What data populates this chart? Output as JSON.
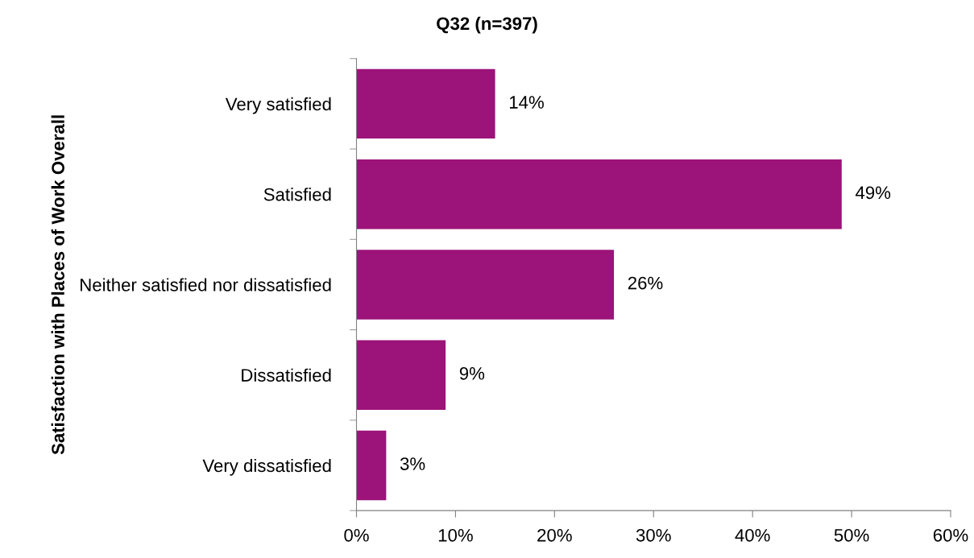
{
  "chart_data": {
    "type": "bar",
    "orientation": "horizontal",
    "title": "Q32 (n=397)",
    "ylabel": "Satisfaction with Places of Work Overall",
    "categories": [
      "Very satisfied",
      "Satisfied",
      "Neither satisfied nor dissatisfied",
      "Dissatisfied",
      "Very dissatisfied"
    ],
    "values": [
      14,
      49,
      26,
      9,
      3
    ],
    "color": "#9c1379",
    "data_labels": true,
    "value_labels": [
      "14%",
      "49%",
      "26%",
      "9%",
      "3%"
    ],
    "xlim": [
      0,
      60
    ],
    "xticks": [
      {
        "value": 0,
        "label": "0%"
      },
      {
        "value": 10,
        "label": "10%"
      },
      {
        "value": 20,
        "label": "20%"
      },
      {
        "value": 30,
        "label": "30%"
      },
      {
        "value": 40,
        "label": "40%"
      },
      {
        "value": 50,
        "label": "50%"
      },
      {
        "value": 60,
        "label": "60%"
      }
    ],
    "grid": false,
    "legend": false
  }
}
